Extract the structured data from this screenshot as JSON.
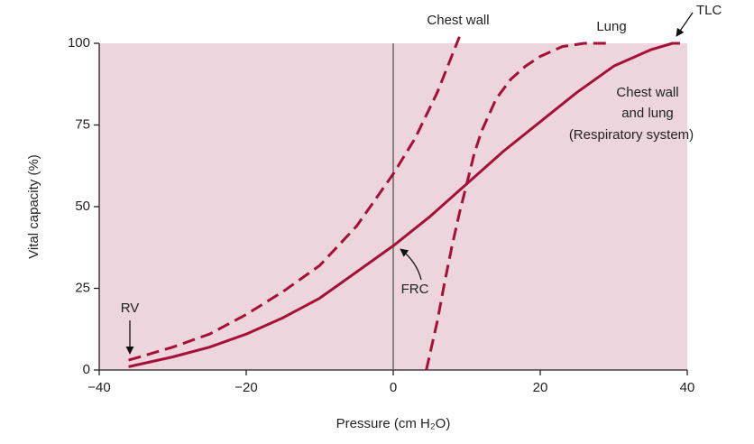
{
  "chart_data": {
    "type": "line",
    "xlabel": "Pressure (cm H₂O)",
    "ylabel": "Vital capacity (%)",
    "xlim": [
      -40,
      40
    ],
    "ylim": [
      0,
      100
    ],
    "xticks": [
      {
        "value": -40,
        "label": "−40"
      },
      {
        "value": -20,
        "label": "−20"
      },
      0,
      20,
      40
    ],
    "yticks": [
      0,
      25,
      50,
      75,
      100
    ],
    "background": "#ecd5dc",
    "zero_line": true,
    "annotations": {
      "chest_wall": "Chest wall",
      "lung": "Lung",
      "tlc": "TLC",
      "system": [
        "Chest wall",
        "and lung",
        "(Respiratory system)"
      ],
      "frc": "FRC",
      "rv": "RV"
    },
    "series": [
      {
        "color": "#a5103a",
        "dash": true,
        "x": [
          -36,
          -30,
          -25,
          -20,
          -15,
          -10,
          -5,
          0,
          3,
          6,
          9
        ],
        "values": [
          3,
          7,
          11,
          17,
          24,
          32,
          44,
          60,
          71,
          85,
          102
        ]
      },
      {
        "color": "#a5103a",
        "dash": true,
        "x": [
          4.5,
          6,
          7,
          8,
          9,
          10,
          11,
          12,
          14,
          16,
          18,
          20,
          23,
          26,
          29.5
        ],
        "values": [
          0,
          15,
          27,
          38,
          48,
          57,
          66,
          73,
          83,
          89,
          93,
          96,
          99,
          100,
          100
        ]
      },
      {
        "color": "#a5103a",
        "dash": false,
        "x": [
          -36,
          -30,
          -25,
          -20,
          -15,
          -10,
          -5,
          0,
          5,
          10,
          15,
          20,
          25,
          30,
          35,
          38,
          39
        ],
        "values": [
          1,
          4,
          7,
          11,
          16,
          22,
          30,
          38,
          47,
          57,
          67,
          76,
          85,
          93,
          98,
          100,
          100
        ]
      }
    ]
  }
}
